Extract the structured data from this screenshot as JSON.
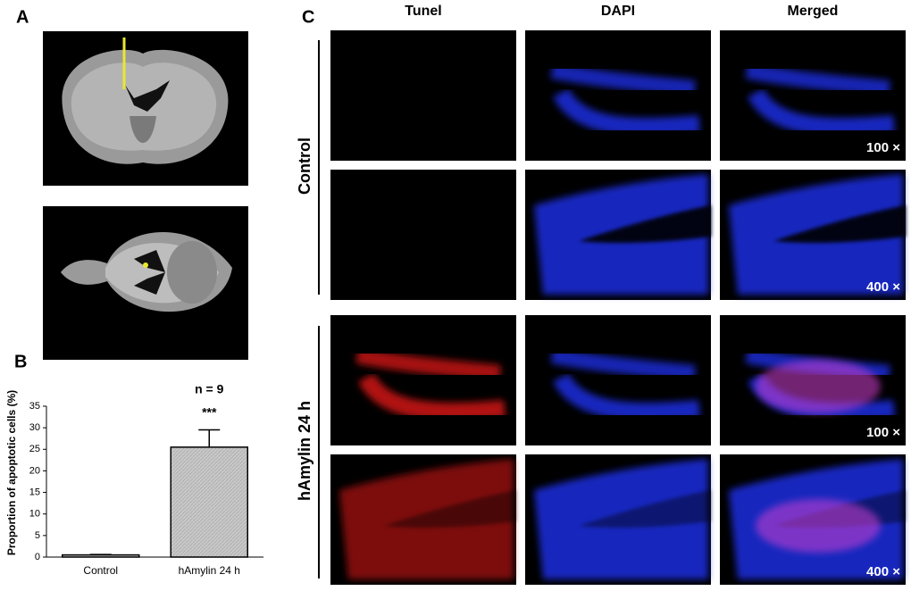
{
  "panels": {
    "a": "A",
    "b": "B",
    "c": "C"
  },
  "columns": [
    "Tunel",
    "DAPI",
    "Merged"
  ],
  "groups": [
    "Control",
    "hAmylin 24 h"
  ],
  "magnifications": [
    "100 ×",
    "400 ×",
    "100 ×",
    "400 ×"
  ],
  "chart_data": {
    "type": "bar",
    "ylabel": "Proportion of apoptotic cells (%)",
    "categories": [
      "Control",
      "hAmylin 24 h"
    ],
    "values": [
      0.5,
      25.5
    ],
    "errors": [
      0.1,
      4
    ],
    "annotations": [
      "n = 9",
      "***"
    ],
    "color": "#c8c8c8",
    "ylim": [
      0,
      35
    ],
    "yticks": [
      0,
      5,
      10,
      15,
      20,
      25,
      30,
      35
    ]
  }
}
